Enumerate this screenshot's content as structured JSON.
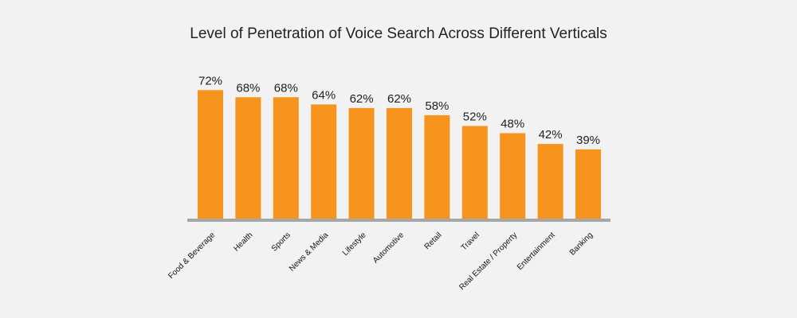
{
  "chart_data": {
    "type": "bar",
    "title": "Level of Penetration of Voice Search Across Different Verticals",
    "xlabel": "",
    "ylabel": "",
    "ylim": [
      0,
      100
    ],
    "value_suffix": "%",
    "categories": [
      "Food & Beverage",
      "Health",
      "Sports",
      "News & Media",
      "Lifestyle",
      "Automotive",
      "Retail",
      "Travel",
      "Real Estate / Property",
      "Entertainment",
      "Banking"
    ],
    "values": [
      72,
      68,
      68,
      64,
      62,
      62,
      58,
      52,
      48,
      42,
      39
    ],
    "data_labels": [
      "72%",
      "68%",
      "68%",
      "64%",
      "62%",
      "62%",
      "58%",
      "52%",
      "48%",
      "42%",
      "39%"
    ],
    "grid": false,
    "legend": "none"
  },
  "colors": {
    "bar": "#f7941d",
    "axis": "#a6a6a6",
    "background": "#f2f2f2",
    "text": "#222222"
  }
}
